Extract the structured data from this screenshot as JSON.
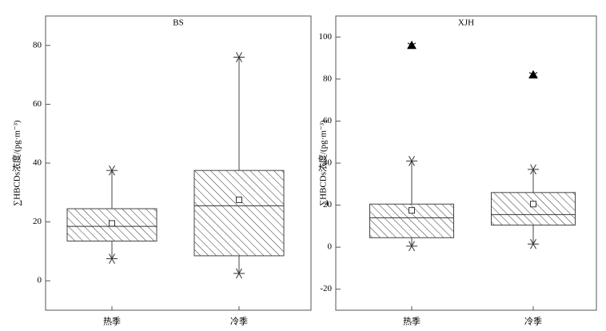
{
  "chart_data": [
    {
      "type": "box",
      "title": "BS",
      "y_label": "∑HBCDs浓度/(pg·m⁻³)",
      "categories": [
        "热季",
        "冷季"
      ],
      "boxes": [
        {
          "min": 7.5,
          "q1": 13.5,
          "median": 18.5,
          "mean": 19.5,
          "q3": 24.5,
          "max": 37.5,
          "outliers": []
        },
        {
          "min": 2.5,
          "q1": 8.5,
          "median": 25.5,
          "mean": 27.5,
          "q3": 37.5,
          "max": 76,
          "outliers": []
        }
      ],
      "ylim": [
        -10,
        90
      ],
      "yticks": [
        0,
        20,
        40,
        60,
        80
      ]
    },
    {
      "type": "box",
      "title": "XJH",
      "y_label": "∑HBCDs浓度/(pg·m⁻³)",
      "categories": [
        "热季",
        "冷季"
      ],
      "boxes": [
        {
          "min": 0.5,
          "q1": 4.5,
          "median": 14,
          "mean": 17.5,
          "q3": 20.5,
          "max": 41,
          "outliers": [
            96
          ]
        },
        {
          "min": 1.5,
          "q1": 10.5,
          "median": 15.5,
          "mean": 20.5,
          "q3": 26,
          "max": 37,
          "outliers": [
            82
          ]
        }
      ],
      "ylim": [
        -30,
        110
      ],
      "yticks": [
        -20,
        0,
        20,
        40,
        60,
        80,
        100
      ]
    }
  ]
}
